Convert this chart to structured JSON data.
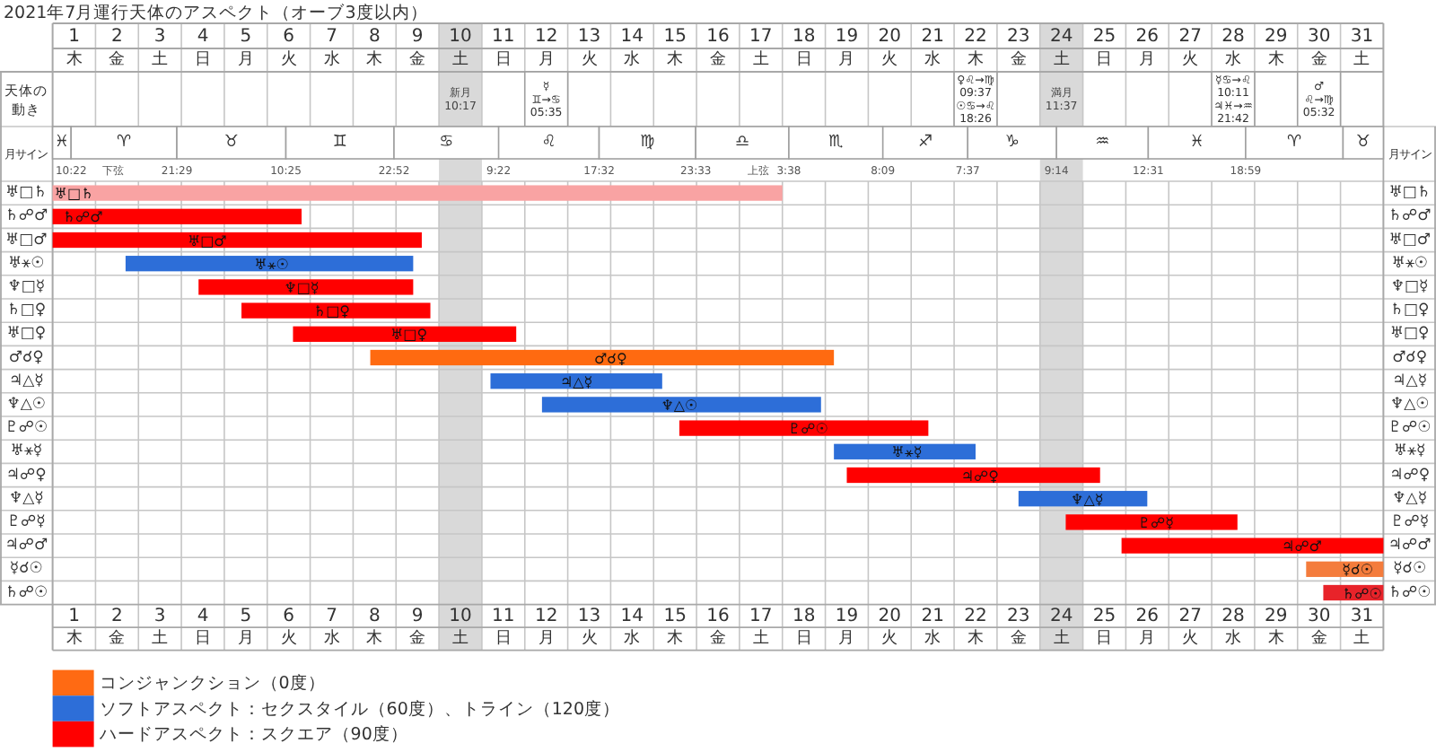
{
  "chart_data": {
    "type": "bar",
    "orientation": "horizontal",
    "title": "2021年7月運行天体のアスペクト（オーブ3度以内）",
    "categories": [
      "天体の動き",
      "月サイン",
      "♅□♄",
      "♄☍♂",
      "♅□♂",
      "♅⚹☉",
      "♆□☿",
      "♄□♀",
      "♅□♀",
      "♂☌♀",
      "♃△☿",
      "♆△☉",
      "♇☍☉",
      "♅⚹☿",
      "♃☍♀",
      "♆△☿",
      "♇☍☿",
      "♃☍♂",
      "☿☌☉",
      "♄☍☉"
    ],
    "y2_categories": [
      null,
      "月サイン",
      "♅□♄",
      "♄☍♂",
      "♅□♂",
      "♅⚹☉",
      "♆□☿",
      "♄□♀",
      "♅□♀",
      "♂☌♀",
      "♃△☿",
      "♆△☉",
      "♇☍☉",
      "♅⚹☿",
      "♃☍♀",
      "♆△☿",
      "♇☍☿",
      "♃☍♂",
      "☿☌☉",
      "♄☍☉"
    ],
    "series": [
      {
        "name": "コンジャンクション（0度）",
        "color": "#ff6a13",
        "values": [
          null,
          null,
          null,
          null,
          null,
          null,
          null,
          null,
          null,
          10.8,
          null,
          null,
          null,
          null,
          null,
          null,
          null,
          null,
          1.8,
          null
        ],
        "base": [
          null,
          null,
          null,
          null,
          null,
          null,
          null,
          null,
          null,
          8.4,
          null,
          null,
          null,
          null,
          null,
          null,
          null,
          null,
          30.2,
          null
        ],
        "colors": [
          null,
          null,
          null,
          null,
          null,
          null,
          null,
          null,
          null,
          "#ff6a10",
          null,
          null,
          null,
          null,
          null,
          null,
          null,
          null,
          "#f47c3c",
          null
        ]
      },
      {
        "name": "ソフトアスペクト：セクスタイル（60度）、トライン（120度）",
        "color": "#2d6ed8",
        "values": [
          null,
          null,
          null,
          null,
          null,
          6.7,
          null,
          null,
          null,
          null,
          4.0,
          6.5,
          null,
          3.3,
          null,
          3.0,
          null,
          null,
          null,
          null
        ],
        "base": [
          null,
          null,
          null,
          null,
          null,
          2.7,
          null,
          null,
          null,
          null,
          11.2,
          12.4,
          null,
          19.2,
          null,
          23.5,
          null,
          null,
          null,
          null
        ]
      },
      {
        "name": "ハードアスペクト：スクエア（90度）",
        "color": "#ff0000",
        "values": [
          null,
          null,
          17.0,
          5.8,
          8.6,
          null,
          5.0,
          4.4,
          5.2,
          null,
          null,
          null,
          5.8,
          null,
          5.9,
          null,
          4.0,
          6.1,
          null,
          1.4
        ],
        "base": [
          null,
          null,
          1,
          1,
          1,
          null,
          4.4,
          5.4,
          6.6,
          null,
          null,
          null,
          15.6,
          null,
          19.5,
          null,
          24.6,
          25.9,
          null,
          30.6
        ],
        "colors": [
          null,
          null,
          "#f9a3a3",
          "#ff0000",
          "#ff0000",
          null,
          "#ff0000",
          "#ff0000",
          "#ff0000",
          null,
          null,
          null,
          "#ff0000",
          null,
          "#ff0000",
          null,
          "#ff0000",
          "#ff0000",
          null,
          "#e8232a"
        ]
      },
      {
        "color": "#ffffff",
        "values": [
          1,
          null,
          null,
          null,
          null,
          null,
          null,
          null,
          null,
          null,
          null,
          null,
          null,
          null,
          null,
          null,
          null,
          null,
          null,
          null
        ],
        "base": [
          12,
          null,
          null,
          null,
          null,
          null,
          null,
          null,
          null,
          null,
          null,
          null,
          null,
          null,
          null,
          null,
          null,
          null,
          null,
          null
        ],
        "value_labels": [
          "☿\n♊→♋\n05:35",
          null,
          null,
          null,
          null,
          null,
          null,
          null,
          null,
          null,
          null,
          null,
          null,
          null,
          null,
          null,
          null,
          null,
          null,
          null
        ]
      },
      {
        "color": "#ffffff",
        "values": [
          1,
          null,
          null,
          null,
          null,
          null,
          null,
          null,
          null,
          null,
          null,
          null,
          null,
          null,
          null,
          null,
          null,
          null,
          null,
          null
        ],
        "base": [
          22,
          null,
          null,
          null,
          null,
          null,
          null,
          null,
          null,
          null,
          null,
          null,
          null,
          null,
          null,
          null,
          null,
          null,
          null,
          null
        ],
        "value_labels": [
          "♀♌→♍\n09:37\n☉♋→♌\n18:26",
          null,
          null,
          null,
          null,
          null,
          null,
          null,
          null,
          null,
          null,
          null,
          null,
          null,
          null,
          null,
          null,
          null,
          null,
          null
        ]
      },
      {
        "color": "#ffffff",
        "values": [
          1,
          null,
          null,
          null,
          null,
          null,
          null,
          null,
          null,
          null,
          null,
          null,
          null,
          null,
          null,
          null,
          null,
          null,
          null,
          null
        ],
        "base": [
          28,
          null,
          null,
          null,
          null,
          null,
          null,
          null,
          null,
          null,
          null,
          null,
          null,
          null,
          null,
          null,
          null,
          null,
          null,
          null
        ],
        "value_labels": [
          "☿♋→♌\n10:11\n♃♓→♒\n21:42",
          null,
          null,
          null,
          null,
          null,
          null,
          null,
          null,
          null,
          null,
          null,
          null,
          null,
          null,
          null,
          null,
          null,
          null,
          null
        ]
      },
      {
        "color": "#ffffff",
        "values": [
          1,
          null,
          null,
          null,
          null,
          null,
          null,
          null,
          null,
          null,
          null,
          null,
          null,
          null,
          null,
          null,
          null,
          null,
          null,
          null
        ],
        "base": [
          30,
          null,
          null,
          null,
          null,
          null,
          null,
          null,
          null,
          null,
          null,
          null,
          null,
          null,
          null,
          null,
          null,
          null,
          null,
          null
        ],
        "value_labels": [
          "♂\n♌→♍\n05:32",
          null,
          null,
          null,
          null,
          null,
          null,
          null,
          null,
          null,
          null,
          null,
          null,
          null,
          null,
          null,
          null,
          null,
          null,
          null
        ]
      },
      {
        "color": "#ffffff",
        "values": [
          null,
          0.43,
          null,
          null,
          null,
          null,
          null,
          null,
          null,
          null,
          null,
          null,
          null,
          null,
          null,
          null,
          null,
          null,
          null,
          null
        ],
        "base": [
          null,
          1,
          null,
          null,
          null,
          null,
          null,
          null,
          null,
          null,
          null,
          null,
          null,
          null,
          null,
          null,
          null,
          null,
          null,
          null
        ],
        "value_labels": [
          null,
          "♓",
          null,
          null,
          null,
          null,
          null,
          null,
          null,
          null,
          null,
          null,
          null,
          null,
          null,
          null,
          null,
          null,
          null,
          null
        ]
      },
      {
        "color": "#ffffff",
        "values": [
          null,
          2.46,
          null,
          null,
          null,
          null,
          null,
          null,
          null,
          null,
          null,
          null,
          null,
          null,
          null,
          null,
          null,
          null,
          null,
          null
        ],
        "base": [
          null,
          1.432,
          null,
          null,
          null,
          null,
          null,
          null,
          null,
          null,
          null,
          null,
          null,
          null,
          null,
          null,
          null,
          null,
          null,
          null
        ],
        "value_labels": [
          null,
          "♈",
          null,
          null,
          null,
          null,
          null,
          null,
          null,
          null,
          null,
          null,
          null,
          null,
          null,
          null,
          null,
          null,
          null,
          null
        ]
      },
      {
        "color": "#ffffff",
        "values": [
          null,
          2.54,
          null,
          null,
          null,
          null,
          null,
          null,
          null,
          null,
          null,
          null,
          null,
          null,
          null,
          null,
          null,
          null,
          null,
          null
        ],
        "base": [
          null,
          3.895,
          null,
          null,
          null,
          null,
          null,
          null,
          null,
          null,
          null,
          null,
          null,
          null,
          null,
          null,
          null,
          null,
          null,
          null
        ],
        "value_labels": [
          null,
          "♉",
          null,
          null,
          null,
          null,
          null,
          null,
          null,
          null,
          null,
          null,
          null,
          null,
          null,
          null,
          null,
          null,
          null,
          null
        ]
      },
      {
        "color": "#ffffff",
        "values": [
          null,
          2.52,
          null,
          null,
          null,
          null,
          null,
          null,
          null,
          null,
          null,
          null,
          null,
          null,
          null,
          null,
          null,
          null,
          null,
          null
        ],
        "base": [
          null,
          6.434,
          null,
          null,
          null,
          null,
          null,
          null,
          null,
          null,
          null,
          null,
          null,
          null,
          null,
          null,
          null,
          null,
          null,
          null
        ],
        "value_labels": [
          null,
          "♊",
          null,
          null,
          null,
          null,
          null,
          null,
          null,
          null,
          null,
          null,
          null,
          null,
          null,
          null,
          null,
          null,
          null,
          null
        ]
      },
      {
        "color": "#ffffff",
        "values": [
          null,
          2.44,
          null,
          null,
          null,
          null,
          null,
          null,
          null,
          null,
          null,
          null,
          null,
          null,
          null,
          null,
          null,
          null,
          null,
          null
        ],
        "base": [
          null,
          8.953,
          null,
          null,
          null,
          null,
          null,
          null,
          null,
          null,
          null,
          null,
          null,
          null,
          null,
          null,
          null,
          null,
          null,
          null
        ],
        "value_labels": [
          null,
          "♋",
          null,
          null,
          null,
          null,
          null,
          null,
          null,
          null,
          null,
          null,
          null,
          null,
          null,
          null,
          null,
          null,
          null,
          null
        ]
      },
      {
        "color": "#ffffff",
        "values": [
          null,
          2.34,
          null,
          null,
          null,
          null,
          null,
          null,
          null,
          null,
          null,
          null,
          null,
          null,
          null,
          null,
          null,
          null,
          null,
          null
        ],
        "base": [
          null,
          11.39,
          null,
          null,
          null,
          null,
          null,
          null,
          null,
          null,
          null,
          null,
          null,
          null,
          null,
          null,
          null,
          null,
          null,
          null
        ],
        "value_labels": [
          null,
          "♌",
          null,
          null,
          null,
          null,
          null,
          null,
          null,
          null,
          null,
          null,
          null,
          null,
          null,
          null,
          null,
          null,
          null,
          null
        ]
      },
      {
        "color": "#ffffff",
        "values": [
          null,
          2.25,
          null,
          null,
          null,
          null,
          null,
          null,
          null,
          null,
          null,
          null,
          null,
          null,
          null,
          null,
          null,
          null,
          null,
          null
        ],
        "base": [
          null,
          13.731,
          null,
          null,
          null,
          null,
          null,
          null,
          null,
          null,
          null,
          null,
          null,
          null,
          null,
          null,
          null,
          null,
          null,
          null
        ],
        "value_labels": [
          null,
          "♍",
          null,
          null,
          null,
          null,
          null,
          null,
          null,
          null,
          null,
          null,
          null,
          null,
          null,
          null,
          null,
          null,
          null,
          null
        ]
      },
      {
        "color": "#ffffff",
        "values": [
          null,
          2.17,
          null,
          null,
          null,
          null,
          null,
          null,
          null,
          null,
          null,
          null,
          null,
          null,
          null,
          null,
          null,
          null,
          null,
          null
        ],
        "base": [
          null,
          15.981,
          null,
          null,
          null,
          null,
          null,
          null,
          null,
          null,
          null,
          null,
          null,
          null,
          null,
          null,
          null,
          null,
          null,
          null
        ],
        "value_labels": [
          null,
          "♎",
          null,
          null,
          null,
          null,
          null,
          null,
          null,
          null,
          null,
          null,
          null,
          null,
          null,
          null,
          null,
          null,
          null,
          null
        ]
      },
      {
        "color": "#ffffff",
        "values": [
          null,
          2.19,
          null,
          null,
          null,
          null,
          null,
          null,
          null,
          null,
          null,
          null,
          null,
          null,
          null,
          null,
          null,
          null,
          null,
          null
        ],
        "base": [
          null,
          18.151,
          null,
          null,
          null,
          null,
          null,
          null,
          null,
          null,
          null,
          null,
          null,
          null,
          null,
          null,
          null,
          null,
          null,
          null
        ],
        "value_labels": [
          null,
          "♏",
          null,
          null,
          null,
          null,
          null,
          null,
          null,
          null,
          null,
          null,
          null,
          null,
          null,
          null,
          null,
          null,
          null,
          null
        ]
      },
      {
        "color": "#ffffff",
        "values": [
          null,
          1.98,
          null,
          null,
          null,
          null,
          null,
          null,
          null,
          null,
          null,
          null,
          null,
          null,
          null,
          null,
          null,
          null,
          null,
          null
        ],
        "base": [
          null,
          20.34,
          null,
          null,
          null,
          null,
          null,
          null,
          null,
          null,
          null,
          null,
          null,
          null,
          null,
          null,
          null,
          null,
          null,
          null
        ],
        "value_labels": [
          null,
          "♐",
          null,
          null,
          null,
          null,
          null,
          null,
          null,
          null,
          null,
          null,
          null,
          null,
          null,
          null,
          null,
          null,
          null,
          null
        ]
      },
      {
        "color": "#ffffff",
        "values": [
          null,
          2.07,
          null,
          null,
          null,
          null,
          null,
          null,
          null,
          null,
          null,
          null,
          null,
          null,
          null,
          null,
          null,
          null,
          null,
          null
        ],
        "base": [
          null,
          22.317,
          null,
          null,
          null,
          null,
          null,
          null,
          null,
          null,
          null,
          null,
          null,
          null,
          null,
          null,
          null,
          null,
          null,
          null
        ],
        "value_labels": [
          null,
          "♑",
          null,
          null,
          null,
          null,
          null,
          null,
          null,
          null,
          null,
          null,
          null,
          null,
          null,
          null,
          null,
          null,
          null,
          null
        ]
      },
      {
        "color": "#ffffff",
        "values": [
          null,
          2.14,
          null,
          null,
          null,
          null,
          null,
          null,
          null,
          null,
          null,
          null,
          null,
          null,
          null,
          null,
          null,
          null,
          null,
          null
        ],
        "base": [
          null,
          24.385,
          null,
          null,
          null,
          null,
          null,
          null,
          null,
          null,
          null,
          null,
          null,
          null,
          null,
          null,
          null,
          null,
          null,
          null
        ],
        "value_labels": [
          null,
          "♒",
          null,
          null,
          null,
          null,
          null,
          null,
          null,
          null,
          null,
          null,
          null,
          null,
          null,
          null,
          null,
          null,
          null,
          null
        ]
      },
      {
        "color": "#ffffff",
        "values": [
          null,
          2.27,
          null,
          null,
          null,
          null,
          null,
          null,
          null,
          null,
          null,
          null,
          null,
          null,
          null,
          null,
          null,
          null,
          null,
          null
        ],
        "base": [
          null,
          26.522,
          null,
          null,
          null,
          null,
          null,
          null,
          null,
          null,
          null,
          null,
          null,
          null,
          null,
          null,
          null,
          null,
          null,
          null
        ],
        "value_labels": [
          null,
          "♓",
          null,
          null,
          null,
          null,
          null,
          null,
          null,
          null,
          null,
          null,
          null,
          null,
          null,
          null,
          null,
          null,
          null,
          null
        ]
      },
      {
        "color": "#ffffff",
        "values": [
          null,
          2.27,
          null,
          null,
          null,
          null,
          null,
          null,
          null,
          null,
          null,
          null,
          null,
          null,
          null,
          null,
          null,
          null,
          null,
          null
        ],
        "base": [
          null,
          28.791,
          null,
          null,
          null,
          null,
          null,
          null,
          null,
          null,
          null,
          null,
          null,
          null,
          null,
          null,
          null,
          null,
          null,
          null
        ],
        "value_labels": [
          null,
          "♈",
          null,
          null,
          null,
          null,
          null,
          null,
          null,
          null,
          null,
          null,
          null,
          null,
          null,
          null,
          null,
          null,
          null,
          null
        ]
      },
      {
        "color": "#ffffff",
        "values": [
          null,
          0.94,
          null,
          null,
          null,
          null,
          null,
          null,
          null,
          null,
          null,
          null,
          null,
          null,
          null,
          null,
          null,
          null,
          null,
          null
        ],
        "base": [
          null,
          31.06,
          null,
          null,
          null,
          null,
          null,
          null,
          null,
          null,
          null,
          null,
          null,
          null,
          null,
          null,
          null,
          null,
          null,
          null
        ],
        "value_labels": [
          null,
          "♉",
          null,
          null,
          null,
          null,
          null,
          null,
          null,
          null,
          null,
          null,
          null,
          null,
          null,
          null,
          null,
          null,
          null,
          null
        ]
      }
    ],
    "xlim": [
      1,
      32
    ],
    "xticks": [
      {
        "value": 1,
        "label": null
      },
      {
        "value": 1.5,
        "label": "1\n木"
      },
      {
        "value": 2,
        "label": null
      },
      {
        "value": 2.5,
        "label": "2\n金"
      },
      {
        "value": 3,
        "label": null
      },
      {
        "value": 3.5,
        "label": "3\n土"
      },
      {
        "value": 4,
        "label": null
      },
      {
        "value": 4.5,
        "label": "4\n日"
      },
      {
        "value": 5,
        "label": null
      },
      {
        "value": 5.5,
        "label": "5\n月"
      },
      {
        "value": 6,
        "label": null
      },
      {
        "value": 6.5,
        "label": "6\n火"
      },
      {
        "value": 7,
        "label": null
      },
      {
        "value": 7.5,
        "label": "7\n水"
      },
      {
        "value": 8,
        "label": null
      },
      {
        "value": 8.5,
        "label": "8\n木"
      },
      {
        "value": 9,
        "label": null
      },
      {
        "value": 9.5,
        "label": "9\n金"
      },
      {
        "value": 10,
        "label": null
      },
      {
        "value": 10.5,
        "label": "10\n土"
      },
      {
        "value": 11,
        "label": null
      },
      {
        "value": 11.5,
        "label": "11\n日"
      },
      {
        "value": 12,
        "label": null
      },
      {
        "value": 12.5,
        "label": "12\n月"
      },
      {
        "value": 13,
        "label": null
      },
      {
        "value": 13.5,
        "label": "13\n火"
      },
      {
        "value": 14,
        "label": null
      },
      {
        "value": 14.5,
        "label": "14\n水"
      },
      {
        "value": 15,
        "label": null
      },
      {
        "value": 15.5,
        "label": "15\n木"
      },
      {
        "value": 16,
        "label": null
      },
      {
        "value": 16.5,
        "label": "16\n金"
      },
      {
        "value": 17,
        "label": null
      },
      {
        "value": 17.5,
        "label": "17\n土"
      },
      {
        "value": 18,
        "label": null
      },
      {
        "value": 18.5,
        "label": "18\n日"
      },
      {
        "value": 19,
        "label": null
      },
      {
        "value": 19.5,
        "label": "19\n月"
      },
      {
        "value": 20,
        "label": null
      },
      {
        "value": 20.5,
        "label": "20\n火"
      },
      {
        "value": 21,
        "label": null
      },
      {
        "value": 21.5,
        "label": "21\n水"
      },
      {
        "value": 22,
        "label": null
      },
      {
        "value": 22.5,
        "label": "22\n木"
      },
      {
        "value": 23,
        "label": null
      },
      {
        "value": 23.5,
        "label": "23\n金"
      },
      {
        "value": 24,
        "label": null
      },
      {
        "value": 24.5,
        "label": "24\n土"
      },
      {
        "value": 25,
        "label": null
      },
      {
        "value": 25.5,
        "label": "25\n日"
      },
      {
        "value": 26,
        "label": null
      },
      {
        "value": 26.5,
        "label": "26\n月"
      },
      {
        "value": 27,
        "label": null
      },
      {
        "value": 27.5,
        "label": "27\n火"
      },
      {
        "value": 28,
        "label": null
      },
      {
        "value": 28.5,
        "label": "28\n水"
      },
      {
        "value": 29,
        "label": null
      },
      {
        "value": 29.5,
        "label": "29\n木"
      },
      {
        "value": 30,
        "label": null
      },
      {
        "value": 30.5,
        "label": "30\n金"
      },
      {
        "value": 31,
        "label": null
      },
      {
        "value": 31.5,
        "label": "31\n土"
      },
      {
        "value": 32,
        "label": null
      }
    ],
    "x2lim": [
      1,
      32
    ],
    "x2ticks": [
      {
        "value": 1,
        "label": null
      },
      {
        "value": 1.5,
        "label": "1\n木"
      },
      {
        "value": 2,
        "label": null
      },
      {
        "value": 2.5,
        "label": "2\n金"
      },
      {
        "value": 3,
        "label": null
      },
      {
        "value": 3.5,
        "label": "3\n土"
      },
      {
        "value": 4,
        "label": null
      },
      {
        "value": 4.5,
        "label": "4\n日"
      },
      {
        "value": 5,
        "label": null
      },
      {
        "value": 5.5,
        "label": "5\n月"
      },
      {
        "value": 6,
        "label": null
      },
      {
        "value": 6.5,
        "label": "6\n火"
      },
      {
        "value": 7,
        "label": null
      },
      {
        "value": 7.5,
        "label": "7\n水"
      },
      {
        "value": 8,
        "label": null
      },
      {
        "value": 8.5,
        "label": "8\n木"
      },
      {
        "value": 9,
        "label": null
      },
      {
        "value": 9.5,
        "label": "9\n金"
      },
      {
        "value": 10,
        "label": null
      },
      {
        "value": 10.5,
        "label": "10\n土"
      },
      {
        "value": 11,
        "label": null
      },
      {
        "value": 11.5,
        "label": "11\n日"
      },
      {
        "value": 12,
        "label": null
      },
      {
        "value": 12.5,
        "label": "12\n月"
      },
      {
        "value": 13,
        "label": null
      },
      {
        "value": 13.5,
        "label": "13\n火"
      },
      {
        "value": 14,
        "label": null
      },
      {
        "value": 14.5,
        "label": "14\n水"
      },
      {
        "value": 15,
        "label": null
      },
      {
        "value": 15.5,
        "label": "15\n木"
      },
      {
        "value": 16,
        "label": null
      },
      {
        "value": 16.5,
        "label": "16\n金"
      },
      {
        "value": 17,
        "label": null
      },
      {
        "value": 17.5,
        "label": "17\n土"
      },
      {
        "value": 18,
        "label": null
      },
      {
        "value": 18.5,
        "label": "18\n日"
      },
      {
        "value": 19,
        "label": null
      },
      {
        "value": 19.5,
        "label": "19\n月"
      },
      {
        "value": 20,
        "label": null
      },
      {
        "value": 20.5,
        "label": "20\n火"
      },
      {
        "value": 21,
        "label": null
      },
      {
        "value": 21.5,
        "label": "21\n水"
      },
      {
        "value": 22,
        "label": null
      },
      {
        "value": 22.5,
        "label": "22\n木"
      },
      {
        "value": 23,
        "label": null
      },
      {
        "value": 23.5,
        "label": "23\n金"
      },
      {
        "value": 24,
        "label": null
      },
      {
        "value": 24.5,
        "label": "24\n土"
      },
      {
        "value": 25,
        "label": null
      },
      {
        "value": 25.5,
        "label": "25\n日"
      },
      {
        "value": 26,
        "label": null
      },
      {
        "value": 26.5,
        "label": "26\n月"
      },
      {
        "value": 27,
        "label": null
      },
      {
        "value": 27.5,
        "label": "27\n火"
      },
      {
        "value": 28,
        "label": null
      },
      {
        "value": 28.5,
        "label": "28\n水"
      },
      {
        "value": 29,
        "label": null
      },
      {
        "value": 29.5,
        "label": "29\n木"
      },
      {
        "value": 30,
        "label": null
      },
      {
        "value": 30.5,
        "label": "30\n金"
      },
      {
        "value": 31,
        "label": null
      },
      {
        "value": 31.5,
        "label": "31\n土"
      },
      {
        "value": 32,
        "label": null
      }
    ],
    "bands": [
      {
        "axis": "x",
        "from": 10,
        "to": 11,
        "color": "#d9d9d9",
        "label": "新月\n10:17"
      },
      {
        "axis": "x",
        "from": 24,
        "to": 25,
        "color": "#d9d9d9",
        "label": "満月\n11:37"
      }
    ],
    "annotations": [
      {
        "text": "10:22",
        "x": 1.432,
        "y": "月サイン"
      },
      {
        "text": "21:29",
        "x": 3.895,
        "y": "月サイン"
      },
      {
        "text": "10:25",
        "x": 6.434,
        "y": "月サイン"
      },
      {
        "text": "22:52",
        "x": 8.953,
        "y": "月サイン"
      },
      {
        "text": "9:22",
        "x": 11.39,
        "y": "月サイン"
      },
      {
        "text": "17:32",
        "x": 13.731,
        "y": "月サイン"
      },
      {
        "text": "23:33",
        "x": 15.981,
        "y": "月サイン"
      },
      {
        "text": "3:38",
        "x": 18.151,
        "y": "月サイン"
      },
      {
        "text": "8:09",
        "x": 20.34,
        "y": "月サイン"
      },
      {
        "text": "7:37",
        "x": 22.317,
        "y": "月サイン"
      },
      {
        "text": "9:14",
        "x": 24.385,
        "y": "月サイン"
      },
      {
        "text": "12:31",
        "x": 26.522,
        "y": "月サイン"
      },
      {
        "text": "18:59",
        "x": 28.791,
        "y": "月サイン"
      },
      {
        "text": "下弦",
        "x": 2.4,
        "y": "月サイン"
      },
      {
        "text": "上弦",
        "x": 17.45,
        "y": "月サイン"
      },
      {
        "text": "♅□♄",
        "x": 1.5,
        "y": "♅□♄"
      },
      {
        "text": "♄☍♂",
        "x": 1.7,
        "y": "♄☍♂"
      },
      {
        "text": "♅□♂",
        "x": 4.6,
        "y": "♅□♂"
      },
      {
        "text": "♅⚹☉",
        "x": 6.1,
        "y": "♅⚹☉"
      },
      {
        "text": "♆□☿",
        "x": 6.8,
        "y": "♆□☿"
      },
      {
        "text": "♄□♀",
        "x": 7.5,
        "y": "♄□♀"
      },
      {
        "text": "♅□♀",
        "x": 9.3,
        "y": "♅□♀"
      },
      {
        "text": "♂☌♀",
        "x": 14.0,
        "y": "♂☌♀"
      },
      {
        "text": "♃△☿",
        "x": 13.2,
        "y": "♃△☿"
      },
      {
        "text": "♆△☉",
        "x": 15.6,
        "y": "♆△☉"
      },
      {
        "text": "♇☍☉",
        "x": 18.6,
        "y": "♇☍☉"
      },
      {
        "text": "♅⚹☿",
        "x": 20.9,
        "y": "♅⚹☿"
      },
      {
        "text": "♃☍♀",
        "x": 22.6,
        "y": "♃☍♀"
      },
      {
        "text": "♆△☿",
        "x": 25.1,
        "y": "♆△☿"
      },
      {
        "text": "♇☍☿",
        "x": 26.7,
        "y": "♇☍☿"
      },
      {
        "text": "♃☍♂",
        "x": 30.1,
        "y": "♃☍♂"
      },
      {
        "text": "☿☌☉",
        "x": 31.4,
        "y": "☿☌☉"
      },
      {
        "text": "♄☍☉",
        "x": 31.5,
        "y": "♄☍☉"
      }
    ],
    "grid": true,
    "legend": "bottom"
  }
}
